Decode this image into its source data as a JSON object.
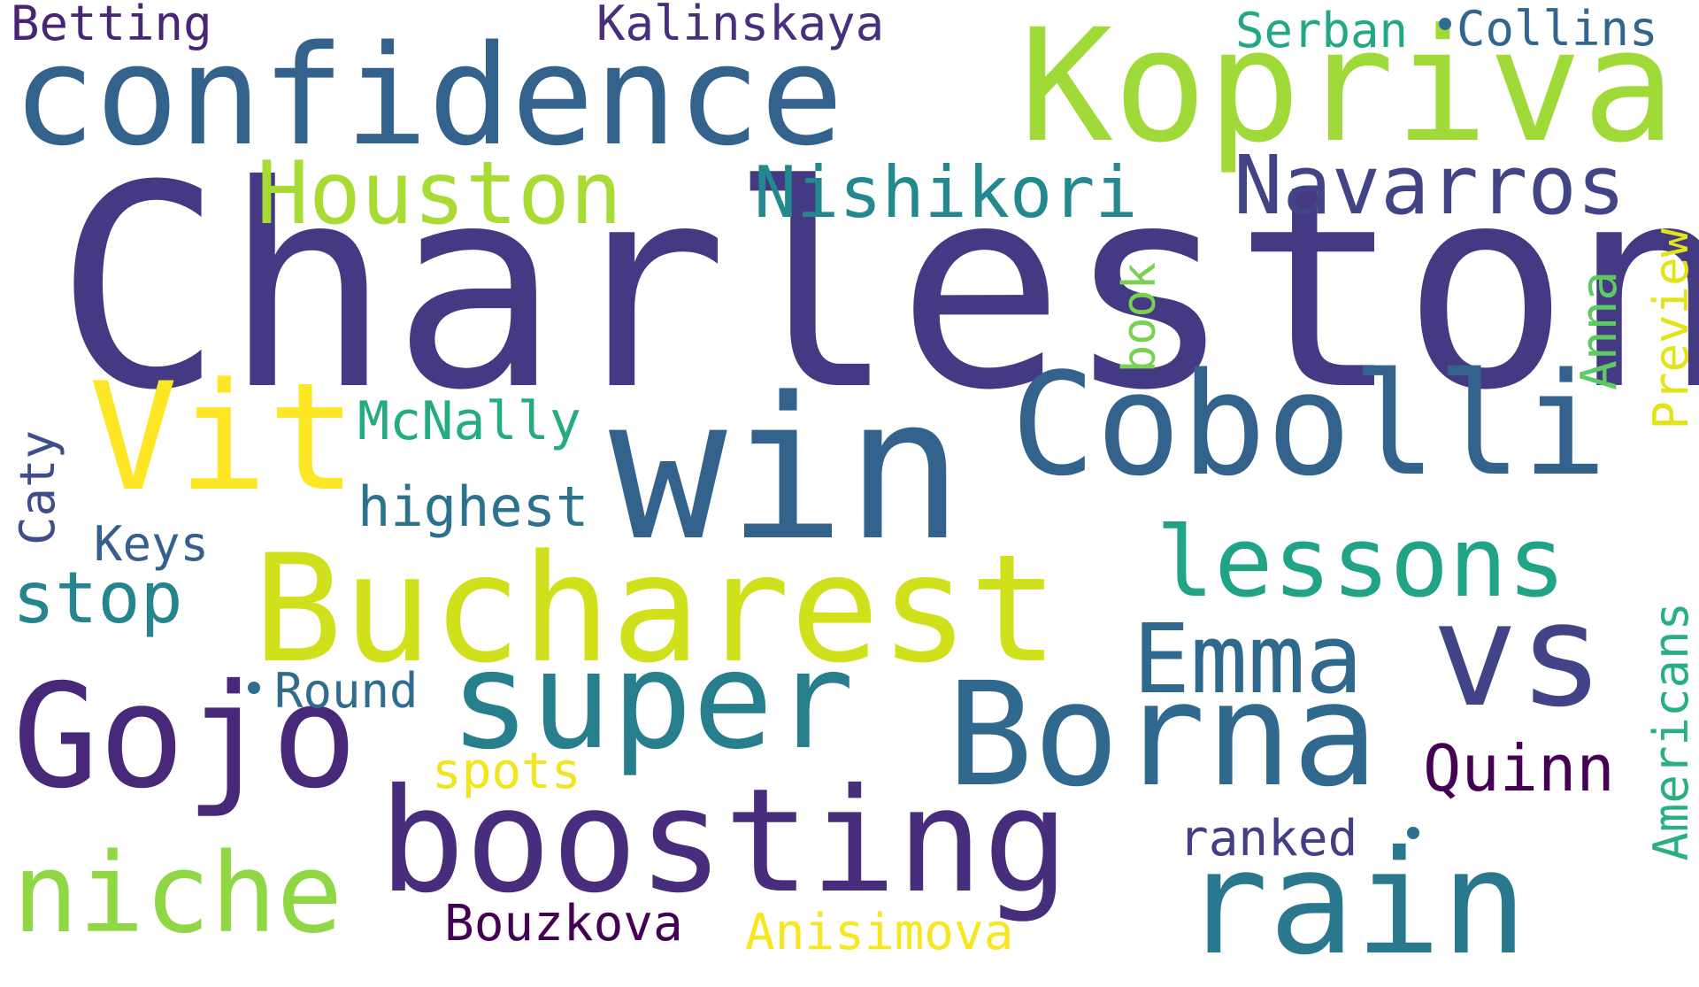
{
  "words": {
    "charleston": {
      "text": "Charleston",
      "color": "#443a83"
    },
    "confidence": {
      "text": "confidence",
      "color": "#33638d"
    },
    "kopriva": {
      "text": "Kopriva",
      "color": "#a0da39"
    },
    "win": {
      "text": "win",
      "color": "#33638d"
    },
    "cobolli": {
      "text": "Cobolli",
      "color": "#33638d"
    },
    "vit": {
      "text": "Vit",
      "color": "#fde725"
    },
    "bucharest": {
      "text": "Bucharest",
      "color": "#d0e11c"
    },
    "gojo": {
      "text": "Gojo",
      "color": "#482878"
    },
    "super": {
      "text": "super",
      "color": "#277f8e"
    },
    "borna": {
      "text": "Borna",
      "color": "#31688e"
    },
    "boosting": {
      "text": "boosting",
      "color": "#472d7b"
    },
    "rain": {
      "text": "rain",
      "color": "#2a788e"
    },
    "vs": {
      "text": "vs",
      "color": "#414487"
    },
    "niche": {
      "text": "niche",
      "color": "#8fd744"
    },
    "lessons": {
      "text": "lessons",
      "color": "#20a386"
    },
    "emma": {
      "text": "Emma",
      "color": "#30698e"
    },
    "houston": {
      "text": "Houston",
      "color": "#a8db34"
    },
    "navarros": {
      "text": "Navarros",
      "color": "#414487"
    },
    "nishikori": {
      "text": "Nishikori",
      "color": "#23898e"
    },
    "stop": {
      "text": "stop",
      "color": "#25848e"
    },
    "quinn": {
      "text": "Quinn",
      "color": "#440154"
    },
    "highest": {
      "text": "highest",
      "color": "#2c728e"
    },
    "mcnally": {
      "text": "McNally",
      "color": "#25ab82"
    },
    "ranked": {
      "text": "ranked",
      "color": "#433e85"
    },
    "bouzkova": {
      "text": "Bouzkova",
      "color": "#440154"
    },
    "anisimova": {
      "text": "Anisimova",
      "color": "#f8e621"
    },
    "spots": {
      "text": "spots",
      "color": "#f1e51d"
    },
    "round": {
      "text": "Round",
      "color": "#2f6c8e"
    },
    "keys": {
      "text": "Keys",
      "color": "#35608d"
    },
    "betting": {
      "text": "Betting",
      "color": "#482475"
    },
    "kalinskaya": {
      "text": "Kalinskaya",
      "color": "#472f7d"
    },
    "serban": {
      "text": "Serban",
      "color": "#22a884"
    },
    "collins": {
      "text": "Collins",
      "color": "#31668e"
    },
    "book": {
      "text": "book",
      "color": "#7ad151"
    },
    "anna": {
      "text": "Anna",
      "color": "#5ec962"
    },
    "preview": {
      "text": "Preview",
      "color": "#e2e418"
    },
    "americans": {
      "text": "Americans",
      "color": "#2ab07f"
    },
    "caty": {
      "text": "Caty",
      "color": "#3d4e8a"
    }
  },
  "dots": {
    "color": "#2e6e8e"
  }
}
